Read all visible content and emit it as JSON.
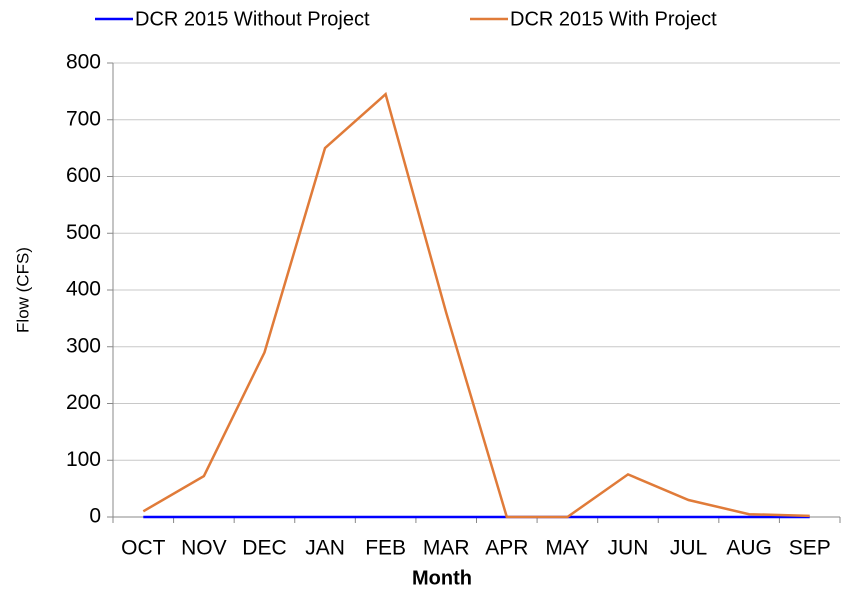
{
  "chart_data": {
    "type": "line",
    "categories": [
      "OCT",
      "NOV",
      "DEC",
      "JAN",
      "FEB",
      "MAR",
      "APR",
      "MAY",
      "JUN",
      "JUL",
      "AUG",
      "SEP"
    ],
    "series": [
      {
        "name": "DCR 2015 Without Project",
        "color": "#0000ff",
        "values": [
          0,
          0,
          0,
          0,
          0,
          0,
          0,
          0,
          0,
          0,
          0,
          0
        ]
      },
      {
        "name": "DCR 2015 With Project",
        "color": "#e07b39",
        "values": [
          10,
          72,
          290,
          650,
          745,
          360,
          0,
          0,
          75,
          30,
          5,
          2
        ]
      }
    ],
    "xlabel": "Month",
    "ylabel": "Flow (CFS)",
    "ylim": [
      0,
      800
    ],
    "yticks": [
      0,
      100,
      200,
      300,
      400,
      500,
      600,
      700,
      800
    ],
    "grid": true,
    "legend": "top"
  }
}
